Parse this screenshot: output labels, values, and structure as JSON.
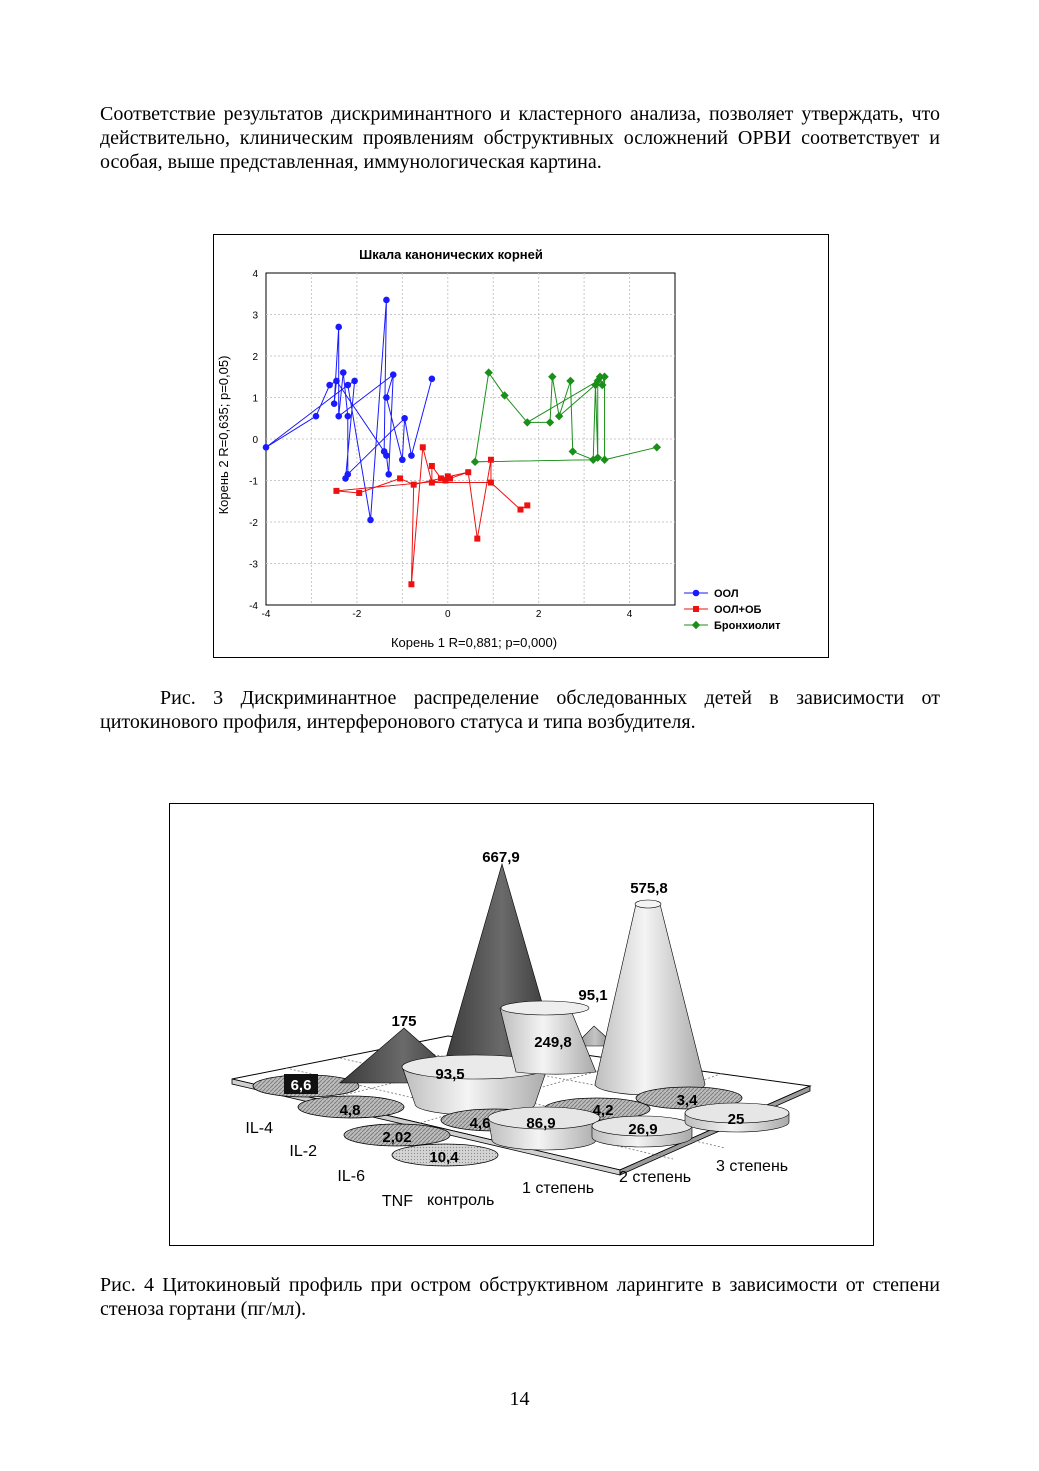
{
  "intro_paragraph": "Соответствие результатов дискриминантного и кластерного анализа, позволяет утверждать, что действительно, клиническим проявлениям обструктивных осложнений ОРВИ соответствует и особая, выше представленная, иммунологическая картина.",
  "fig3_caption": "Рис. 3 Дискриминантное распределение обследованных детей в зависимости от цитокинового профиля, интерферонового статуса и типа возбудителя.",
  "fig4_caption": "Рис. 4 Цитокиновый профиль при остром обструктивном ларингите в зависимости от степени стеноза гортани (пг/мл).",
  "page_number": "14",
  "chart_data": [
    {
      "type": "scatter",
      "title": "Шкала канонических корней",
      "xlabel": "Корень 1 R=0,881; p=0,000)",
      "ylabel": "Корень 2 R=0,635; p=0,05)",
      "xlim": [
        -4,
        5
      ],
      "ylim": [
        -4,
        4
      ],
      "x_ticks": [
        "-4",
        "-2",
        "0",
        "2",
        "4"
      ],
      "y_ticks": [
        "4",
        "3",
        "2",
        "1",
        "0",
        "-1",
        "-2",
        "-3",
        "-4"
      ],
      "grid": true,
      "legend_position": "bottom-right",
      "points_connected": true,
      "series": [
        {
          "name": "ООЛ",
          "color": "#1a1aff",
          "marker": "circle",
          "points": [
            [
              -4.0,
              -0.2
            ],
            [
              -2.9,
              0.55
            ],
            [
              -2.6,
              1.3
            ],
            [
              -2.45,
              1.4
            ],
            [
              -2.5,
              0.85
            ],
            [
              -2.4,
              2.7
            ],
            [
              -2.4,
              0.55
            ],
            [
              -2.3,
              1.6
            ],
            [
              -2.2,
              0.55
            ],
            [
              -2.2,
              -0.85
            ],
            [
              -2.25,
              -0.95
            ],
            [
              -2.05,
              1.4
            ],
            [
              -2.2,
              1.3
            ],
            [
              -1.7,
              -1.95
            ],
            [
              -1.35,
              3.35
            ],
            [
              -1.4,
              -0.3
            ],
            [
              -1.35,
              -0.4
            ],
            [
              -1.3,
              -0.85
            ],
            [
              -1.2,
              1.55
            ],
            [
              -1.35,
              1.0
            ],
            [
              -1.0,
              -0.5
            ],
            [
              -0.95,
              0.5
            ],
            [
              -0.8,
              -0.4
            ],
            [
              -0.35,
              1.45
            ]
          ]
        },
        {
          "name": "ООЛ+ОБ",
          "color": "#ee1111",
          "marker": "square",
          "points": [
            [
              -2.45,
              -1.25
            ],
            [
              -1.95,
              -1.3
            ],
            [
              -1.05,
              -0.95
            ],
            [
              -0.75,
              -1.1
            ],
            [
              -0.8,
              -3.5
            ],
            [
              -0.55,
              -0.2
            ],
            [
              -0.35,
              -1.05
            ],
            [
              -0.35,
              -0.65
            ],
            [
              -0.15,
              -0.95
            ],
            [
              -0.05,
              -1.0
            ],
            [
              0.0,
              -0.9
            ],
            [
              0.05,
              -0.95
            ],
            [
              0.45,
              -0.8
            ],
            [
              0.65,
              -2.4
            ],
            [
              0.95,
              -0.5
            ],
            [
              0.95,
              -1.05
            ],
            [
              1.6,
              -1.7
            ],
            [
              1.75,
              -1.6
            ]
          ]
        },
        {
          "name": "Бронхиолит",
          "color": "#1a8f1a",
          "marker": "diamond",
          "points": [
            [
              0.6,
              -0.55
            ],
            [
              0.9,
              1.6
            ],
            [
              1.25,
              1.05
            ],
            [
              1.75,
              0.4
            ],
            [
              2.25,
              0.4
            ],
            [
              2.3,
              1.5
            ],
            [
              2.45,
              0.55
            ],
            [
              2.7,
              1.4
            ],
            [
              2.75,
              -0.3
            ],
            [
              3.2,
              -0.5
            ],
            [
              3.25,
              1.3
            ],
            [
              3.3,
              -0.45
            ],
            [
              3.3,
              1.4
            ],
            [
              3.35,
              1.5
            ],
            [
              3.4,
              1.3
            ],
            [
              3.45,
              1.5
            ],
            [
              3.45,
              -0.5
            ],
            [
              4.6,
              -0.2
            ]
          ]
        }
      ]
    },
    {
      "type": "bar",
      "style": "3d-cones",
      "categories": [
        "контроль",
        "1 степень",
        "2 степень",
        "3 степень"
      ],
      "series": [
        {
          "name": "IL-4",
          "values": [
            6.6,
            175,
            667.9,
            95.1
          ]
        },
        {
          "name": "IL-2",
          "values": [
            4.8,
            93.5,
            249.8,
            575.8
          ]
        },
        {
          "name": "IL-6",
          "values": [
            2.02,
            4.6,
            4.2,
            3.4
          ]
        },
        {
          "name": "TNF",
          "values": [
            10.4,
            86.9,
            26.9,
            25
          ]
        }
      ],
      "labels": {
        "il4_control": "6,6",
        "il4_d1": "175",
        "il4_d2": "667,9",
        "il4_d3": "95,1",
        "il2_control": "4,8",
        "il2_d1": "93,5",
        "il2_d2": "249,8",
        "il2_d3": "575,8",
        "il6_control": "2,02",
        "il6_d1": "4,6",
        "il6_d2": "4,2",
        "il6_d3": "3,4",
        "tnf_control": "10,4",
        "tnf_d1": "86,9",
        "tnf_d2": "26,9",
        "tnf_d3": "25"
      },
      "colors": {
        "il4": "#555555",
        "il2": "#c9c9c9",
        "il6": "#888888",
        "tnf": "#d9d9d9"
      }
    }
  ]
}
